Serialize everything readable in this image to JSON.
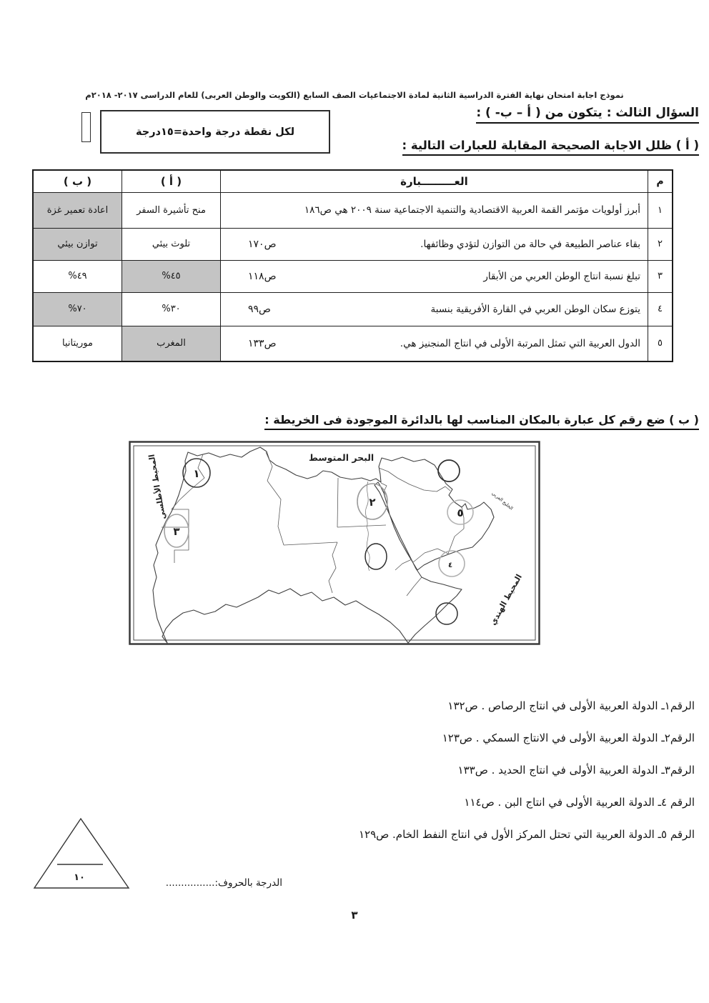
{
  "page": {
    "header": "نموذج  اجابة امتحان نهاية الفترة الدراسية الثانية  لمادة الاجتماعيات الصف السابع (الكويت والوطن العربى) للعام الدراسى ٢٠١٧- ٢٠١٨م",
    "page_number": "٣",
    "grade_value": "١٠",
    "grade_in_letters": "الدرجة بالحروف:................"
  },
  "question": {
    "title": "السؤال الثالث : يتكون من ( أ – ب- ) :",
    "note": "لكل نقطة درجة واحدة=١٥درجة"
  },
  "part_a": {
    "heading": "( أ ) ظلل الاجابة الصحيحة المقابلة للعبارات  التالية  :",
    "table": {
      "headers": {
        "num": "م",
        "statement": "العـــــــــبارة",
        "a": "( أ )",
        "b": "( ب )"
      },
      "rows": [
        {
          "num": "١",
          "statement": "أبرز  أولويات مؤتمر القمة العربية الاقتصادية والتنمية الاجتماعية سنة ٢٠٠٩ هي ص١٨٦",
          "ref": "",
          "a": "منح تأشيرة السفر",
          "b": "اعادة تعمير غزة",
          "shaded": "b"
        },
        {
          "num": "٢",
          "statement": "بقاء عناصر الطبيعة في حالة من التوازن لتؤدي وظائفها.",
          "ref": "ص١٧٠",
          "a": "تلوث بيئي",
          "b": "توازن بيئي",
          "shaded": "b"
        },
        {
          "num": "٣",
          "statement": "تبلغ نسبة انتاج الوطن العربي من الأبقار",
          "ref": "ص١١٨",
          "a": "٤٥%",
          "b": "٤٩%",
          "shaded": "a"
        },
        {
          "num": "٤",
          "statement": "يتوزع سكان الوطن العربي في القارة الأفريقية بنسبة",
          "ref": "ص٩٩",
          "a": "٣٠%",
          "b": "٧٠%",
          "shaded": "b"
        },
        {
          "num": "٥",
          "statement": "الدول العربية التي تمثل المرتبة الأولى في انتاج المنجنيز هي.",
          "ref": "ص١٣٣",
          "a": "المغرب",
          "b": "موريتانيا",
          "shaded": "a"
        }
      ]
    }
  },
  "part_b": {
    "heading": "( ب )  ضع رقم كل عبارة بالمكان المناسب لها بالدائرة الموجودة فى الخريطة :",
    "map": {
      "sea_labels": {
        "mediterranean": "البحر المتوسط",
        "atlantic": "المحيط الأطلسي",
        "indian": "المحيط الهندي",
        "gulf": "الخليج العربي"
      },
      "numbers": [
        "١",
        "٢",
        "٣",
        "٤",
        "٥"
      ]
    },
    "items": [
      "الرقم١ـ الدولة العربية الأولى في انتاج الرصاص . ص١٣٢",
      "الرقم٢ـ الدولة العربية الأولى في الانتاج السمكي . ص١٢٣",
      "الرقم٣ـ الدولة العربية الأولى في انتاج الحديد . ص١٣٣",
      "الرقم ٤ـ الدولة العربية الأولى في انتاج البن  . ص١١٤",
      "الرقم ٥ـ الدولة العربية التي تحتل المركز الأول في انتاج النفط الخام. ص١٢٩"
    ]
  },
  "colors": {
    "shaded_cell": "#c4c4c4",
    "ink": "#161616"
  }
}
